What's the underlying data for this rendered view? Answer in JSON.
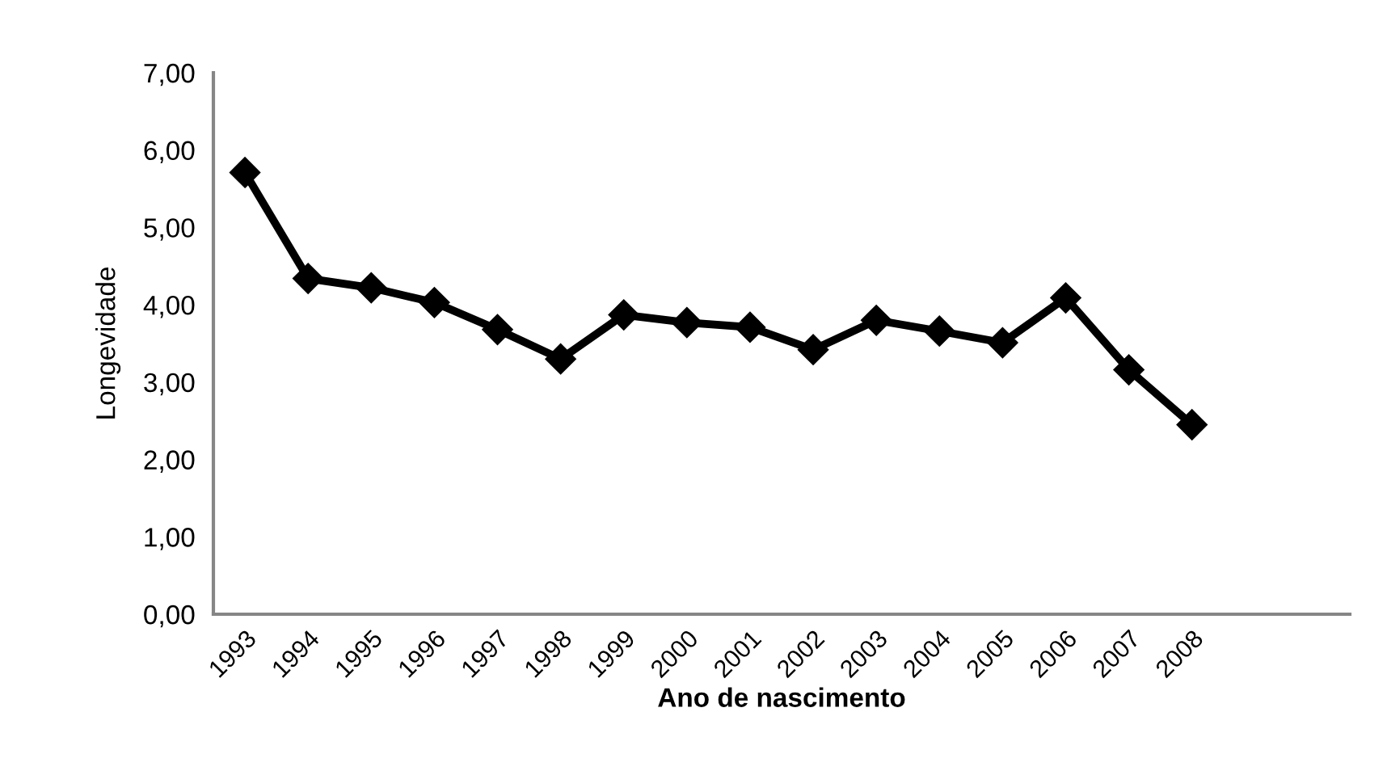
{
  "chart_data": {
    "type": "line",
    "xlabel": "Ano de nascimento",
    "ylabel": "Longevidade",
    "categories": [
      "1993",
      "1994",
      "1995",
      "1996",
      "1997",
      "1998",
      "1999",
      "2000",
      "2001",
      "2002",
      "2003",
      "2004",
      "2005",
      "2006",
      "2007",
      "2008",
      null,
      null
    ],
    "series": [
      {
        "color": "#000000",
        "values": [
          5.71,
          4.34,
          4.22,
          4.03,
          3.68,
          3.3,
          3.87,
          3.77,
          3.71,
          3.42,
          3.8,
          3.66,
          3.51,
          4.09,
          3.16,
          2.45,
          null,
          null
        ]
      }
    ],
    "ylim": [
      0,
      7
    ],
    "yticks": [
      {
        "value": 0,
        "label": "0,00"
      },
      {
        "value": 1,
        "label": "1,00"
      },
      {
        "value": 2,
        "label": "2,00"
      },
      {
        "value": 3,
        "label": "3,00"
      },
      {
        "value": 4,
        "label": "4,00"
      },
      {
        "value": 5,
        "label": "5,00"
      },
      {
        "value": 6,
        "label": "6,00"
      },
      {
        "value": 7,
        "label": "7,00"
      }
    ],
    "marker": "diamond",
    "line_style": "solid",
    "grid": false,
    "legend": false
  }
}
